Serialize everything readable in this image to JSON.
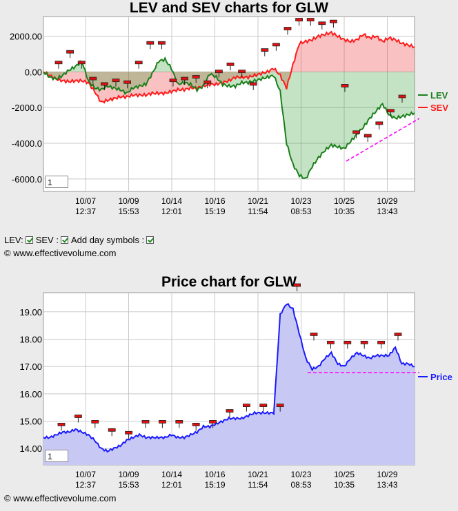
{
  "title_top": "LEV and SEV charts for GLW",
  "title_bottom": "Price chart for GLW",
  "controls": {
    "lev_label": "LEV:",
    "sev_label": "SEV :",
    "day_symbols_label": "Add day symbols :"
  },
  "copyright": "© www.effectivevolume.com",
  "zoom_value": "1",
  "colors": {
    "lev": "#1a7f1a",
    "sev": "#ff1a1a",
    "price": "#1a1aff",
    "trend": "#ff00ff"
  },
  "chart_data": [
    {
      "type": "line",
      "title": "LEV and SEV charts for GLW",
      "x_tick_labels": [
        [
          "10/07",
          "12:37"
        ],
        [
          "10/09",
          "15:53"
        ],
        [
          "10/14",
          "12:01"
        ],
        [
          "10/16",
          "15:19"
        ],
        [
          "10/21",
          "11:54"
        ],
        [
          "10/23",
          "08:53"
        ],
        [
          "10/25",
          "10:35"
        ],
        [
          "10/29",
          "13:43"
        ]
      ],
      "y_ticks": [
        2000,
        0,
        -2000,
        -4000,
        -6000
      ],
      "y_tick_labels": [
        "2000.00",
        "0.00",
        "-2000.0",
        "-4000.0",
        "-6000.0"
      ],
      "ylim": [
        -6700,
        3100
      ],
      "legend_position": "right",
      "series": [
        {
          "name": "LEV",
          "values": [
            0,
            -300,
            -400,
            -200,
            100,
            300,
            600,
            -500,
            -900,
            -1000,
            -800,
            -900,
            -1000,
            -1200,
            -900,
            -800,
            -700,
            -100,
            600,
            700,
            200,
            -700,
            -600,
            -700,
            -1000,
            -800,
            -100,
            -300,
            -700,
            -800,
            -800,
            -600,
            -600,
            -500,
            -400,
            -300,
            -200,
            -1100,
            -4000,
            -5200,
            -5800,
            -6000,
            -5300,
            -4800,
            -4400,
            -4100,
            -4200,
            -4300,
            -3900,
            -3500,
            -3100,
            -2600,
            -2200,
            -1800,
            -2400,
            -2600,
            -2500,
            -2400,
            -2300
          ]
        },
        {
          "name": "SEV",
          "values": [
            0,
            -200,
            -400,
            -500,
            -550,
            -500,
            -500,
            -600,
            -1100,
            -1700,
            -1600,
            -1500,
            -1400,
            -1400,
            -1300,
            -1300,
            -1300,
            -1200,
            -1200,
            -1200,
            -1100,
            -1000,
            -1000,
            -900,
            -900,
            -800,
            -700,
            -700,
            -600,
            -500,
            -300,
            -300,
            -300,
            -200,
            -100,
            0,
            200,
            -200,
            -900,
            400,
            1600,
            1700,
            1800,
            2000,
            2100,
            2200,
            2000,
            1800,
            1700,
            1800,
            2100,
            1900,
            2000,
            1700,
            1900,
            1800,
            1600,
            1500,
            1400
          ]
        }
      ],
      "day_marker_levels": [
        100,
        700,
        100,
        -800,
        -1100,
        -900,
        -1000,
        100,
        1200,
        1200,
        -900,
        -800,
        -700,
        -1000,
        -400,
        0,
        -400,
        -1100,
        800,
        1100,
        2000,
        2500,
        2500,
        2300,
        2400,
        -1200,
        -3800,
        -4000,
        -3300,
        -2600,
        -1800
      ]
    },
    {
      "type": "area",
      "title": "Price chart for GLW",
      "x_tick_labels": [
        [
          "10/07",
          "12:37"
        ],
        [
          "10/09",
          "15:53"
        ],
        [
          "10/14",
          "12:01"
        ],
        [
          "10/16",
          "15:19"
        ],
        [
          "10/21",
          "11:54"
        ],
        [
          "10/23",
          "08:53"
        ],
        [
          "10/25",
          "10:35"
        ],
        [
          "10/29",
          "13:43"
        ]
      ],
      "y_ticks": [
        19.0,
        18.0,
        17.0,
        16.0,
        15.0,
        14.0
      ],
      "y_tick_labels": [
        "19.00",
        "18.00",
        "17.00",
        "16.00",
        "15.00",
        "14.00"
      ],
      "ylim": [
        13.4,
        19.7
      ],
      "legend_position": "right",
      "series": [
        {
          "name": "Price",
          "values": [
            14.4,
            14.4,
            14.5,
            14.6,
            14.6,
            14.7,
            14.6,
            14.5,
            14.3,
            14.0,
            13.9,
            14.0,
            14.1,
            14.3,
            14.4,
            14.5,
            14.4,
            14.4,
            14.4,
            14.4,
            14.5,
            14.4,
            14.4,
            14.5,
            14.6,
            14.8,
            14.8,
            14.9,
            15.0,
            15.1,
            15.1,
            15.1,
            15.2,
            15.3,
            15.3,
            15.3,
            15.3,
            18.9,
            19.3,
            19.1,
            18.2,
            17.3,
            16.9,
            17.0,
            17.3,
            17.5,
            17.1,
            17.0,
            17.3,
            17.5,
            17.4,
            17.3,
            17.4,
            17.4,
            17.4,
            17.7,
            17.1,
            17.1,
            17.0
          ]
        }
      ],
      "day_marker_levels": [
        14.6,
        14.9,
        14.7,
        14.4,
        14.3,
        14.7,
        14.7,
        14.7,
        14.6,
        14.7,
        15.1,
        15.3,
        15.3,
        15.3,
        19.7,
        17.9,
        17.6,
        17.6,
        17.6,
        17.6,
        17.9
      ]
    }
  ]
}
